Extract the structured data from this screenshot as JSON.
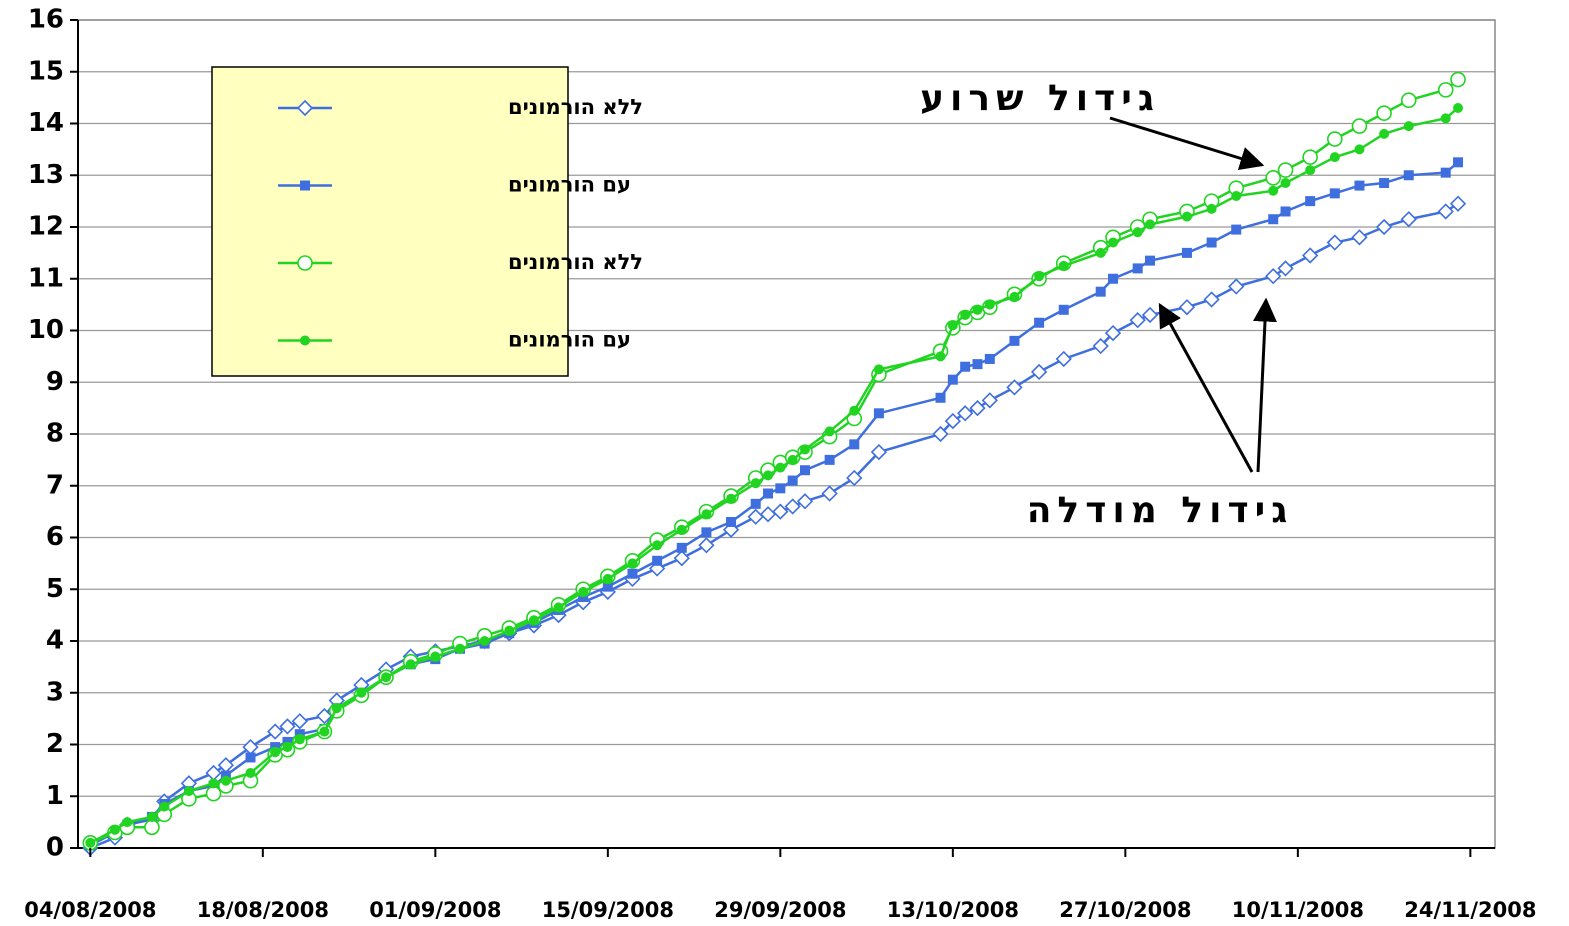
{
  "chart_data": {
    "type": "line",
    "x": [
      "04/08/2008",
      "06/08/2008",
      "07/08/2008",
      "09/08/2008",
      "10/08/2008",
      "12/08/2008",
      "14/08/2008",
      "15/08/2008",
      "17/08/2008",
      "19/08/2008",
      "20/08/2008",
      "21/08/2008",
      "23/08/2008",
      "24/08/2008",
      "26/08/2008",
      "28/08/2008",
      "30/08/2008",
      "01/09/2008",
      "03/09/2008",
      "05/09/2008",
      "07/09/2008",
      "09/09/2008",
      "11/09/2008",
      "13/09/2008",
      "15/09/2008",
      "17/09/2008",
      "19/09/2008",
      "21/09/2008",
      "23/09/2008",
      "25/09/2008",
      "27/09/2008",
      "28/09/2008",
      "29/09/2008",
      "30/09/2008",
      "01/10/2008",
      "03/10/2008",
      "05/10/2008",
      "07/10/2008",
      "12/10/2008",
      "13/10/2008",
      "14/10/2008",
      "15/10/2008",
      "16/10/2008",
      "18/10/2008",
      "20/10/2008",
      "22/10/2008",
      "25/10/2008",
      "26/10/2008",
      "28/10/2008",
      "29/10/2008",
      "01/11/2008",
      "03/11/2008",
      "05/11/2008",
      "08/11/2008",
      "09/11/2008",
      "11/11/2008",
      "13/11/2008",
      "15/11/2008",
      "17/11/2008",
      "19/11/2008",
      "22/11/2008",
      "23/11/2008"
    ],
    "series": [
      {
        "name": "ללא הורמונים",
        "color": "#3f6fdf",
        "marker": "diamond-open",
        "values": [
          0,
          0.2,
          0.45,
          0.55,
          0.9,
          1.25,
          1.45,
          1.6,
          1.95,
          2.25,
          2.35,
          2.45,
          2.55,
          2.85,
          3.15,
          3.45,
          3.7,
          3.8,
          3.9,
          4.0,
          4.15,
          4.3,
          4.5,
          4.75,
          4.95,
          5.2,
          5.4,
          5.6,
          5.85,
          6.15,
          6.4,
          6.45,
          6.5,
          6.6,
          6.7,
          6.85,
          7.15,
          7.65,
          8.0,
          8.25,
          8.4,
          8.5,
          8.65,
          8.9,
          9.2,
          9.45,
          9.7,
          9.95,
          10.2,
          10.3,
          10.45,
          10.6,
          10.85,
          11.05,
          11.2,
          11.45,
          11.7,
          11.8,
          12.0,
          12.15,
          12.3,
          12.45
        ]
      },
      {
        "name": "עם הורמונים",
        "color": "#3f6fdf",
        "marker": "square",
        "values": [
          0.05,
          0.3,
          0.45,
          0.6,
          0.85,
          1.1,
          1.2,
          1.4,
          1.75,
          1.95,
          2.05,
          2.2,
          2.3,
          2.7,
          3.0,
          3.3,
          3.55,
          3.65,
          3.85,
          3.95,
          4.15,
          4.35,
          4.6,
          4.85,
          5.05,
          5.3,
          5.55,
          5.8,
          6.1,
          6.3,
          6.65,
          6.85,
          6.95,
          7.1,
          7.3,
          7.5,
          7.8,
          8.4,
          8.7,
          9.05,
          9.3,
          9.35,
          9.45,
          9.8,
          10.15,
          10.4,
          10.75,
          11.0,
          11.2,
          11.35,
          11.5,
          11.7,
          11.95,
          12.15,
          12.3,
          12.5,
          12.65,
          12.8,
          12.85,
          13.0,
          13.05,
          13.25
        ]
      },
      {
        "name": "ללא הורמונים",
        "color": "#22d422",
        "marker": "circle-open",
        "values": [
          0.1,
          0.3,
          0.4,
          0.4,
          0.65,
          0.95,
          1.05,
          1.2,
          1.3,
          1.8,
          1.9,
          2.05,
          2.25,
          2.65,
          2.95,
          3.3,
          3.6,
          3.75,
          3.95,
          4.1,
          4.25,
          4.45,
          4.7,
          5.0,
          5.25,
          5.55,
          5.95,
          6.2,
          6.5,
          6.8,
          7.15,
          7.3,
          7.45,
          7.55,
          7.65,
          7.95,
          8.3,
          9.15,
          9.6,
          10.05,
          10.25,
          10.35,
          10.45,
          10.7,
          11.0,
          11.3,
          11.6,
          11.8,
          12.0,
          12.15,
          12.3,
          12.5,
          12.75,
          12.95,
          13.1,
          13.35,
          13.7,
          13.95,
          14.2,
          14.45,
          14.65,
          14.85
        ]
      },
      {
        "name": "עם הורמונים",
        "color": "#22d422",
        "marker": "circle",
        "values": [
          0.1,
          0.35,
          0.5,
          0.6,
          0.8,
          1.1,
          1.25,
          1.3,
          1.45,
          1.85,
          1.95,
          2.1,
          2.25,
          2.7,
          3.0,
          3.3,
          3.55,
          3.7,
          3.85,
          4.0,
          4.2,
          4.4,
          4.65,
          4.95,
          5.2,
          5.5,
          5.85,
          6.15,
          6.45,
          6.75,
          7.05,
          7.2,
          7.35,
          7.5,
          7.7,
          8.05,
          8.45,
          9.25,
          9.5,
          10.1,
          10.3,
          10.4,
          10.5,
          10.65,
          11.05,
          11.25,
          11.5,
          11.7,
          11.9,
          12.05,
          12.2,
          12.35,
          12.6,
          12.7,
          12.85,
          13.1,
          13.35,
          13.5,
          13.8,
          13.95,
          14.1,
          14.3
        ]
      }
    ],
    "xlim": [
      "03/08/2008",
      "26/11/2008"
    ],
    "xticks": [
      "04/08/2008",
      "18/08/2008",
      "01/09/2008",
      "15/09/2008",
      "29/09/2008",
      "13/10/2008",
      "27/10/2008",
      "10/11/2008",
      "24/11/2008"
    ],
    "ylim": [
      0,
      16
    ],
    "yticks": [
      0,
      1,
      2,
      3,
      4,
      5,
      6,
      7,
      8,
      9,
      10,
      11,
      12,
      13,
      14,
      15,
      16
    ],
    "grid": true,
    "legend": "upper left",
    "annotations": [
      "גידול שרוע",
      "גידול מודלה"
    ]
  }
}
